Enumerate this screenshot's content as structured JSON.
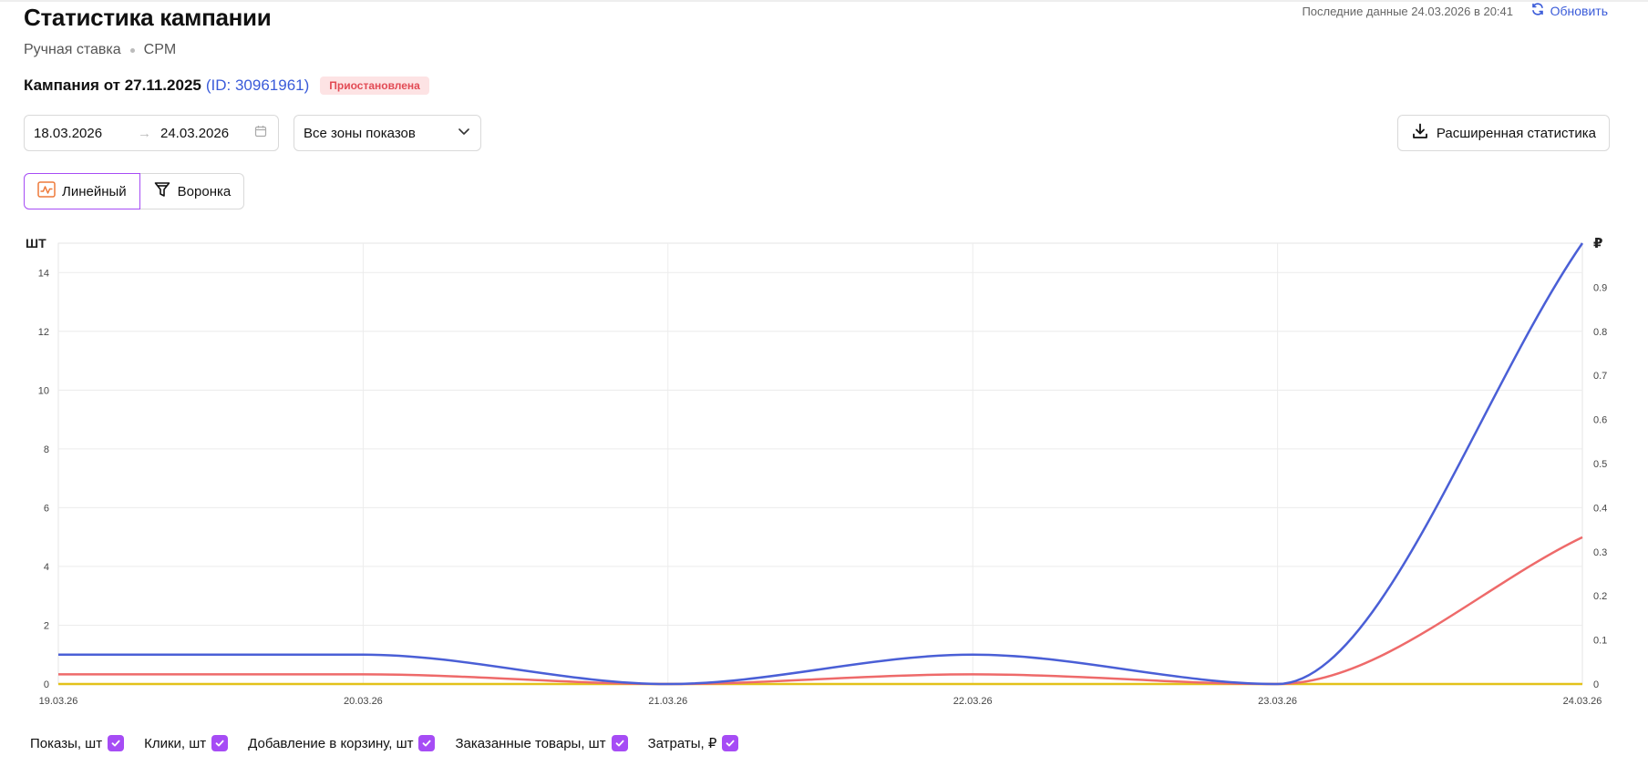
{
  "header": {
    "title": "Статистика кампании",
    "bid_type": "Ручная ставка",
    "model": "CPM",
    "last_data": "Последние данные 24.03.2026 в 20:41",
    "refresh_label": "Обновить"
  },
  "campaign": {
    "name": "Кампания от 27.11.2025",
    "id": "(ID: 30961961)",
    "status": "Приостановлена"
  },
  "filters": {
    "date_from": "18.03.2026",
    "date_to": "24.03.2026",
    "zones": "Все зоны показов",
    "export_label": "Расширенная статистика"
  },
  "view_toggle": {
    "line_label": "Линейный",
    "funnel_label": "Воронка"
  },
  "colors": {
    "accent": "#a64cf5",
    "link": "#3a5bd9",
    "status_bg": "#fde3e4",
    "status_text": "#e24b55"
  },
  "chart_data": {
    "type": "line",
    "x": [
      "19.03.26",
      "20.03.26",
      "21.03.26",
      "22.03.26",
      "23.03.26",
      "24.03.26"
    ],
    "y_left_label": "ШТ",
    "y_right_label": "₽",
    "y_left_ticks": [
      0,
      2,
      4,
      6,
      8,
      10,
      12,
      14
    ],
    "y_left_lim": [
      0,
      15
    ],
    "y_right_ticks": [
      0,
      0.1,
      0.2,
      0.3,
      0.4,
      0.5,
      0.6,
      0.7,
      0.8,
      0.9
    ],
    "y_right_lim": [
      0,
      1
    ],
    "grid": true,
    "series": [
      {
        "axis": "left",
        "color": "#4a5fd6",
        "values": [
          1,
          1,
          0,
          1,
          0,
          15
        ]
      },
      {
        "axis": "right",
        "color": "#ee6a6a",
        "values": [
          0.022,
          0.022,
          0,
          0.022,
          0,
          0.333
        ]
      },
      {
        "axis": "left",
        "color": "#e3c21a",
        "values": [
          0,
          0,
          0,
          0,
          0,
          0
        ]
      }
    ]
  },
  "legend": [
    {
      "label": "Показы, шт"
    },
    {
      "label": "Клики, шт"
    },
    {
      "label": "Добавление в корзину, шт"
    },
    {
      "label": "Заказанные товары, шт"
    },
    {
      "label": "Затраты, ₽"
    }
  ]
}
